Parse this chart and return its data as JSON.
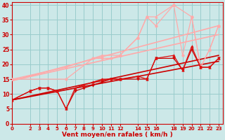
{
  "xlabel": "Vent moyen/en rafales ( km/h )",
  "bg_color": "#cce8e8",
  "grid_color": "#99cccc",
  "axis_color": "#cc0000",
  "text_color": "#cc0000",
  "xlim": [
    0,
    23.5
  ],
  "ylim": [
    0,
    41
  ],
  "xticks": [
    0,
    2,
    3,
    4,
    5,
    6,
    7,
    8,
    9,
    10,
    11,
    12,
    14,
    15,
    16,
    18,
    19,
    20,
    21,
    22,
    23
  ],
  "yticks": [
    0,
    5,
    10,
    15,
    20,
    25,
    30,
    35,
    40
  ],
  "lines": [
    {
      "x": [
        0,
        23
      ],
      "y": [
        14.5,
        33
      ],
      "color": "#ffaaaa",
      "marker": "",
      "linewidth": 1.2
    },
    {
      "x": [
        0,
        23
      ],
      "y": [
        14.5,
        30
      ],
      "color": "#ffaaaa",
      "marker": "",
      "linewidth": 1.2
    },
    {
      "x": [
        0,
        23
      ],
      "y": [
        8,
        23
      ],
      "color": "#cc0000",
      "marker": "",
      "linewidth": 1.2
    },
    {
      "x": [
        0,
        23
      ],
      "y": [
        8,
        21
      ],
      "color": "#cc0000",
      "marker": "",
      "linewidth": 1.2
    },
    {
      "x": [
        0,
        6,
        9,
        10,
        11,
        12,
        14,
        15,
        16,
        18,
        19,
        20,
        21,
        22,
        23
      ],
      "y": [
        15,
        15,
        22,
        22,
        22,
        23,
        29,
        36,
        33,
        40,
        23,
        36,
        19,
        25,
        33
      ],
      "color": "#ffaaaa",
      "marker": "o",
      "markersize": 2.5,
      "linewidth": 0.9
    },
    {
      "x": [
        0,
        6,
        10,
        12,
        14,
        15,
        16,
        18,
        20,
        21,
        22,
        23
      ],
      "y": [
        15,
        19,
        23,
        23,
        29,
        36,
        36,
        40,
        36,
        19,
        25,
        33
      ],
      "color": "#ffaaaa",
      "marker": "^",
      "markersize": 2.5,
      "linewidth": 0.9
    },
    {
      "x": [
        0,
        2,
        3,
        4,
        5,
        6,
        7,
        8,
        9,
        10,
        11,
        12,
        14,
        15,
        16,
        18,
        19,
        20,
        21,
        22,
        23
      ],
      "y": [
        8,
        11,
        12,
        12,
        11,
        5,
        11,
        12,
        13,
        14,
        15,
        15,
        15,
        15,
        22,
        22,
        18,
        25,
        19,
        19,
        22
      ],
      "color": "#cc0000",
      "marker": "v",
      "markersize": 2.5,
      "linewidth": 0.9
    },
    {
      "x": [
        0,
        2,
        3,
        4,
        5,
        6,
        7,
        8,
        9,
        10,
        11,
        12,
        14,
        15,
        16,
        18,
        19,
        20,
        21,
        22,
        23
      ],
      "y": [
        8,
        11,
        12,
        12,
        11,
        5,
        12,
        13,
        14,
        15,
        15,
        15,
        16,
        15,
        22,
        23,
        18,
        26,
        19,
        19,
        22
      ],
      "color": "#dd1111",
      "marker": "^",
      "markersize": 2.5,
      "linewidth": 0.9
    }
  ]
}
